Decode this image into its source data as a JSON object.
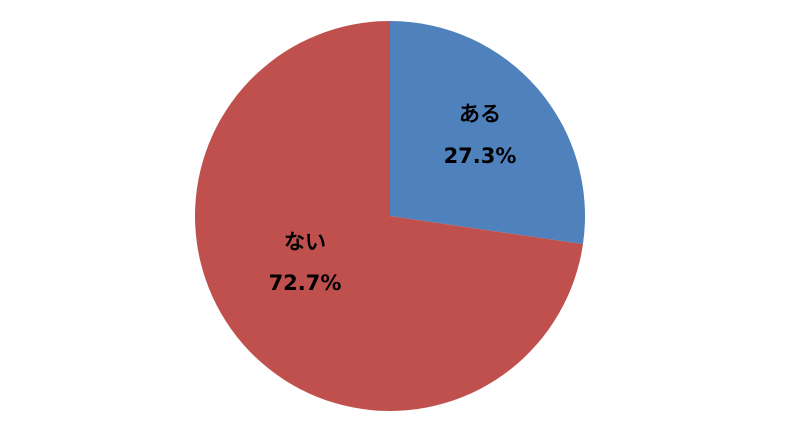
{
  "chart_data": {
    "type": "pie",
    "title": "",
    "start_angle": "12 o'clock, clockwise",
    "slices": [
      {
        "label": "ある",
        "value": 27.3,
        "value_label": "27.3%",
        "color": "#4F81BD"
      },
      {
        "label": "ない",
        "value": 72.7,
        "value_label": "72.7%",
        "color": "#C0504D"
      }
    ],
    "legend": "none"
  }
}
